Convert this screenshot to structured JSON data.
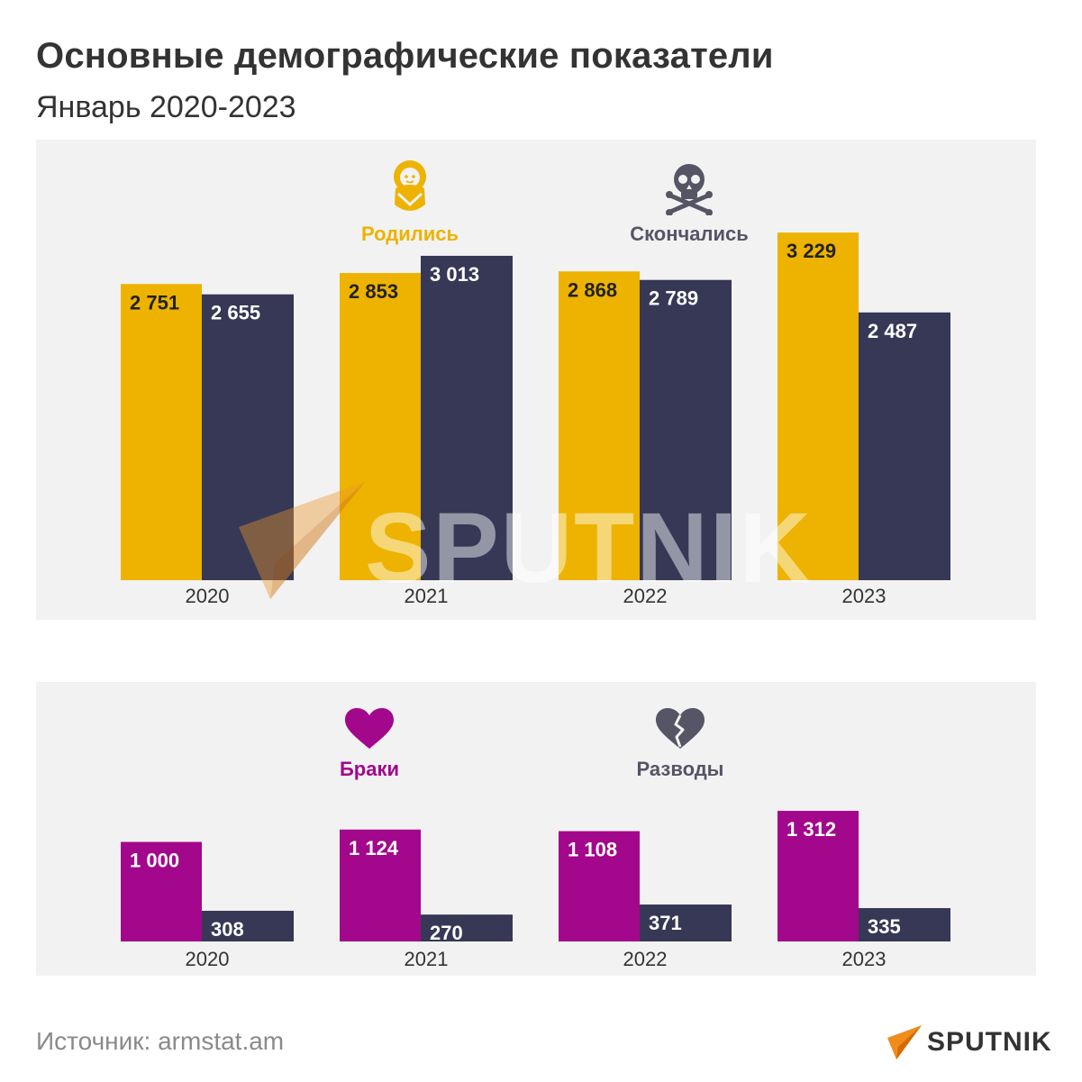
{
  "header": {
    "title": "Основные демографические показатели",
    "subtitle": "Январь 2020-2023"
  },
  "colors": {
    "births": "#edb300",
    "deaths": "#363856",
    "marriages": "#a3078c",
    "divorces": "#363856",
    "panel": "#f2f2f2"
  },
  "legend_top": {
    "births": {
      "label": "Родились",
      "icon": "baby-icon"
    },
    "deaths": {
      "label": "Скончались",
      "icon": "skull-crossbones-icon"
    }
  },
  "legend_bottom": {
    "marriages": {
      "label": "Браки",
      "icon": "heart-icon"
    },
    "divorces": {
      "label": "Разводы",
      "icon": "broken-heart-icon"
    }
  },
  "chart_data": [
    {
      "type": "bar",
      "categories": [
        "2020",
        "2021",
        "2022",
        "2023"
      ],
      "series": [
        {
          "name": "Родились",
          "values": [
            2751,
            2853,
            2868,
            3229
          ],
          "labels": [
            "2 751",
            "2 853",
            "2 868",
            "3 229"
          ]
        },
        {
          "name": "Скончались",
          "values": [
            2655,
            3013,
            2789,
            2487
          ],
          "labels": [
            "2 655",
            "3 013",
            "2 789",
            "2 487"
          ]
        }
      ],
      "ylim": [
        0,
        3400
      ]
    },
    {
      "type": "bar",
      "categories": [
        "2020",
        "2021",
        "2022",
        "2023"
      ],
      "series": [
        {
          "name": "Браки",
          "values": [
            1000,
            1124,
            1108,
            1312
          ],
          "labels": [
            "1 000",
            "1 124",
            "1 108",
            "1 312"
          ]
        },
        {
          "name": "Разводы",
          "values": [
            308,
            270,
            371,
            335
          ],
          "labels": [
            "308",
            "270",
            "371",
            "335"
          ]
        }
      ],
      "ylim": [
        0,
        1400
      ]
    }
  ],
  "watermark": {
    "text": "SPUTNIK"
  },
  "footer": {
    "source": "Источник: armstat.am",
    "logo_text": "SPUTNIK"
  }
}
